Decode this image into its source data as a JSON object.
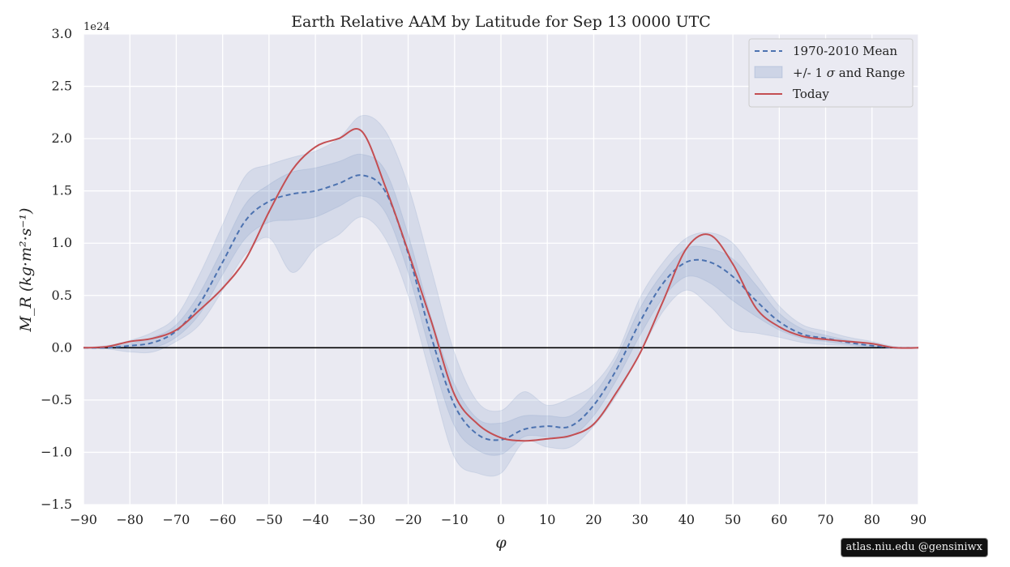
{
  "chart_data": {
    "type": "line",
    "title": "Earth Relative AAM by Latitude for Sep 13 0000 UTC",
    "xlabel": "φ",
    "ylabel": "M_R  (kg·m²·s⁻¹)",
    "y_scale_label": "1e24",
    "xlim": [
      -90,
      90
    ],
    "ylim": [
      -1.5,
      3.0
    ],
    "xticks": [
      -90,
      -80,
      -70,
      -60,
      -50,
      -40,
      -30,
      -20,
      -10,
      0,
      10,
      20,
      30,
      40,
      50,
      60,
      70,
      80,
      90
    ],
    "xtick_labels": [
      "−90",
      "−80",
      "−70",
      "−60",
      "−50",
      "−40",
      "−30",
      "−20",
      "−10",
      "0",
      "10",
      "20",
      "30",
      "40",
      "50",
      "60",
      "70",
      "80",
      "90"
    ],
    "yticks": [
      -1.5,
      -1.0,
      -0.5,
      0.0,
      0.5,
      1.0,
      1.5,
      2.0,
      2.5,
      3.0
    ],
    "ytick_labels": [
      "−1.5",
      "−1.0",
      "−0.5",
      "0.0",
      "0.5",
      "1.0",
      "1.5",
      "2.0",
      "2.5",
      "3.0"
    ],
    "grid": true,
    "legend_position": "top-right",
    "x": [
      -90,
      -85,
      -80,
      -75,
      -70,
      -65,
      -60,
      -55,
      -50,
      -45,
      -40,
      -35,
      -30,
      -25,
      -20,
      -15,
      -10,
      -5,
      0,
      5,
      10,
      15,
      20,
      25,
      30,
      35,
      40,
      45,
      50,
      55,
      60,
      65,
      70,
      75,
      80,
      85,
      90
    ],
    "series": [
      {
        "name": "1970-2010 Mean",
        "style": "dashed",
        "color": "#4c72b0",
        "values": [
          0.0,
          0.0,
          0.02,
          0.05,
          0.16,
          0.42,
          0.82,
          1.22,
          1.4,
          1.47,
          1.5,
          1.57,
          1.65,
          1.5,
          0.9,
          0.1,
          -0.55,
          -0.83,
          -0.88,
          -0.78,
          -0.75,
          -0.75,
          -0.55,
          -0.2,
          0.25,
          0.62,
          0.82,
          0.82,
          0.68,
          0.45,
          0.25,
          0.13,
          0.09,
          0.05,
          0.02,
          0.0,
          0.0
        ]
      },
      {
        "name": "Today",
        "style": "solid",
        "color": "#c44e52",
        "values": [
          0.0,
          0.01,
          0.06,
          0.09,
          0.17,
          0.36,
          0.57,
          0.85,
          1.3,
          1.7,
          1.92,
          2.0,
          2.07,
          1.55,
          0.92,
          0.25,
          -0.45,
          -0.73,
          -0.86,
          -0.89,
          -0.87,
          -0.84,
          -0.73,
          -0.42,
          -0.05,
          0.45,
          0.95,
          1.08,
          0.8,
          0.38,
          0.2,
          0.11,
          0.08,
          0.06,
          0.04,
          0.0,
          0.0
        ]
      }
    ],
    "bands": [
      {
        "name": "+/- 1 σ and Range",
        "kind": "range",
        "color": "#4c72b0",
        "lower": [
          0.0,
          -0.01,
          -0.04,
          -0.04,
          0.06,
          0.22,
          0.55,
          0.9,
          1.05,
          0.72,
          0.95,
          1.08,
          1.25,
          1.05,
          0.5,
          -0.3,
          -1.05,
          -1.2,
          -1.2,
          -0.9,
          -0.95,
          -0.95,
          -0.75,
          -0.45,
          -0.05,
          0.35,
          0.55,
          0.4,
          0.18,
          0.14,
          0.1,
          0.05,
          0.03,
          0.02,
          0.0,
          0.0,
          0.0
        ],
        "upper": [
          0.0,
          0.02,
          0.07,
          0.15,
          0.3,
          0.7,
          1.18,
          1.65,
          1.75,
          1.82,
          1.88,
          2.0,
          2.22,
          2.08,
          1.55,
          0.75,
          -0.05,
          -0.52,
          -0.6,
          -0.42,
          -0.55,
          -0.48,
          -0.35,
          -0.05,
          0.48,
          0.82,
          1.05,
          1.1,
          1.0,
          0.7,
          0.4,
          0.22,
          0.16,
          0.1,
          0.06,
          0.01,
          0.0
        ]
      },
      {
        "name": "+/- 1 sigma",
        "kind": "sigma",
        "color": "#4c72b0",
        "lower": [
          0.0,
          0.0,
          0.0,
          0.0,
          0.1,
          0.32,
          0.7,
          1.05,
          1.2,
          1.22,
          1.25,
          1.35,
          1.45,
          1.3,
          0.72,
          -0.08,
          -0.75,
          -0.98,
          -1.02,
          -0.85,
          -0.85,
          -0.85,
          -0.65,
          -0.3,
          0.12,
          0.48,
          0.68,
          0.62,
          0.45,
          0.3,
          0.17,
          0.09,
          0.06,
          0.03,
          0.01,
          0.0,
          0.0
        ],
        "upper": [
          0.0,
          0.01,
          0.04,
          0.1,
          0.22,
          0.52,
          0.95,
          1.38,
          1.56,
          1.68,
          1.72,
          1.78,
          1.85,
          1.7,
          1.08,
          0.28,
          -0.35,
          -0.68,
          -0.72,
          -0.65,
          -0.65,
          -0.65,
          -0.45,
          -0.1,
          0.38,
          0.72,
          0.95,
          0.95,
          0.85,
          0.6,
          0.33,
          0.18,
          0.12,
          0.07,
          0.04,
          0.0,
          0.0
        ]
      }
    ],
    "zero_line": 0.0
  },
  "legend": {
    "mean_label": "1970-2010 Mean",
    "band_label_prefix": "+/- 1 ",
    "band_label_sigma": "σ",
    "band_label_suffix": " and Range",
    "today_label": "Today"
  },
  "credit": "atlas.niu.edu  @gensiniwx",
  "colors": {
    "plot_background": "#eaeaf2",
    "grid": "#ffffff",
    "band": "#4c72b0",
    "mean": "#4c72b0",
    "today": "#c44e52"
  }
}
